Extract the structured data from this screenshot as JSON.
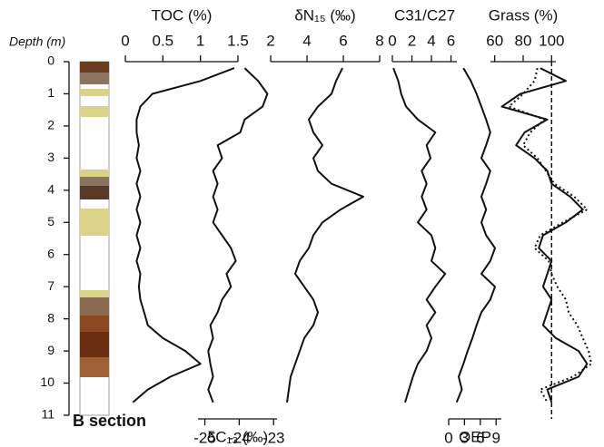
{
  "chart_data": {
    "type": "profile",
    "ylabel": "Depth (m)",
    "ylim": [
      0,
      11
    ],
    "yticks": [
      0,
      1,
      2,
      3,
      4,
      5,
      6,
      7,
      8,
      9,
      10,
      11
    ],
    "section_label": "B section",
    "y": [
      0.2,
      0.6,
      1.0,
      1.4,
      1.8,
      2.2,
      2.6,
      3.0,
      3.4,
      3.8,
      4.2,
      4.6,
      5.0,
      5.4,
      5.8,
      6.2,
      6.6,
      7.0,
      7.4,
      7.8,
      8.2,
      8.6,
      9.0,
      9.4,
      9.8,
      10.2,
      10.6
    ],
    "panels": [
      {
        "title": "TOC (%)",
        "xaxis": "top",
        "xlim": [
          0,
          1.5
        ],
        "xticks": [
          0,
          0.5,
          1,
          1.5
        ],
        "series": [
          {
            "color": "#111111",
            "values": [
              1.45,
              1.0,
              0.36,
              0.2,
              0.15,
              0.15,
              0.18,
              0.15,
              0.2,
              0.15,
              0.2,
              0.15,
              0.2,
              0.15,
              0.2,
              0.15,
              0.2,
              0.18,
              0.2,
              0.25,
              0.3,
              0.5,
              0.8,
              1.0,
              0.6,
              0.3,
              0.1
            ]
          }
        ]
      },
      {
        "title": "δC₁₃ (‰)",
        "xaxis": "bottom",
        "xlim": [
          -25.2,
          -22.9
        ],
        "xticks": [
          -25,
          -24,
          -23
        ],
        "series": [
          {
            "color": "#111111",
            "values": [
              -23.84,
              -23.45,
              -23.18,
              -23.32,
              -23.84,
              -23.97,
              -24.63,
              -24.5,
              -24.76,
              -24.63,
              -24.76,
              -24.63,
              -24.76,
              -24.5,
              -24.24,
              -24.1,
              -24.37,
              -24.24,
              -24.5,
              -24.63,
              -24.84,
              -24.76,
              -24.9,
              -24.84,
              -24.76,
              -24.9,
              -24.76
            ]
          }
        ]
      },
      {
        "title": "δN₁₅ (‰)",
        "xaxis": "top",
        "xlim": [
          2,
          8
        ],
        "xticks": [
          2,
          4,
          6,
          8
        ],
        "series": [
          {
            "color": "#111111",
            "values": [
              5.95,
              5.6,
              5.35,
              4.6,
              4.1,
              4.35,
              4.85,
              4.35,
              4.6,
              5.35,
              7.1,
              5.85,
              4.85,
              4.35,
              4.1,
              3.6,
              3.35,
              3.85,
              4.35,
              4.6,
              4.35,
              3.85,
              3.6,
              3.35,
              3.1,
              3.0,
              2.9
            ]
          }
        ]
      },
      {
        "title": "C31/C27",
        "xaxis": "top",
        "xlim": [
          0,
          6.6
        ],
        "xticks": [
          0,
          2,
          4,
          6
        ],
        "series": [
          {
            "color": "#111111",
            "values": [
              0.1,
              0.6,
              0.9,
              1.4,
              2.6,
              4.4,
              3.5,
              3.9,
              3.0,
              3.5,
              3.0,
              3.5,
              2.6,
              4.0,
              4.4,
              4.0,
              5.4,
              4.4,
              3.5,
              4.4,
              3.5,
              4.0,
              3.5,
              2.6,
              2.1,
              1.7,
              1.3
            ]
          }
        ]
      },
      {
        "title": "OEP",
        "xaxis": "bottom",
        "xlim": [
          0,
          10
        ],
        "xticks": [
          0,
          3,
          6,
          9
        ],
        "series": [
          {
            "color": "#111111",
            "values": [
              2.8,
              4.2,
              5.3,
              6.2,
              7.1,
              7.9,
              7.1,
              6.2,
              7.9,
              7.1,
              6.2,
              7.1,
              6.2,
              7.1,
              8.8,
              7.9,
              6.2,
              8.8,
              7.9,
              6.2,
              5.3,
              4.5,
              3.6,
              2.8,
              1.9,
              2.5,
              1.5
            ]
          }
        ]
      },
      {
        "title": "Grass (%)",
        "xaxis": "top",
        "xlim": [
          57,
          103
        ],
        "xticks": [
          60,
          80,
          100
        ],
        "refline": 100,
        "series": [
          {
            "color": "#111111",
            "style": "solid",
            "values": [
              92,
              110,
              78,
              65,
              97,
              81,
              75,
              88,
              97,
              100,
              113,
              122,
              110,
              94,
              91,
              100,
              97,
              94,
              100,
              97,
              94,
              103,
              119,
              125,
              119,
              97,
              100
            ]
          },
          {
            "color": "#111111",
            "style": "dotted",
            "values": [
              90,
              88,
              80,
              70,
              95,
              85,
              80,
              90,
              96,
              102,
              116,
              125,
              108,
              92,
              88,
              98,
              100,
              104,
              110,
              112,
              118,
              122,
              126,
              128,
              115,
              92,
              97
            ]
          }
        ]
      }
    ]
  }
}
